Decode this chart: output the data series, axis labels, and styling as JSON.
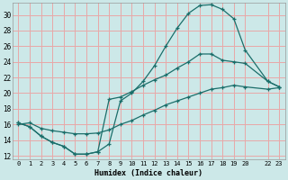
{
  "xlabel": "Humidex (Indice chaleur)",
  "background_color": "#cce8e8",
  "grid_color": "#e8a8a8",
  "line_color": "#1a6e6a",
  "xlim": [
    -0.5,
    23.5
  ],
  "ylim": [
    11.5,
    31.5
  ],
  "xticks": [
    0,
    1,
    2,
    3,
    4,
    5,
    6,
    7,
    8,
    9,
    10,
    11,
    12,
    13,
    14,
    15,
    16,
    17,
    18,
    19,
    20,
    22,
    23
  ],
  "yticks": [
    12,
    14,
    16,
    18,
    20,
    22,
    24,
    26,
    28,
    30
  ],
  "curve1_x": [
    0,
    1,
    2,
    3,
    4,
    5,
    6,
    7,
    8,
    9,
    10,
    11,
    12,
    13,
    14,
    15,
    16,
    17,
    18,
    19,
    20,
    22,
    23
  ],
  "curve1_y": [
    16.2,
    15.7,
    14.5,
    13.7,
    13.2,
    12.2,
    12.2,
    12.5,
    13.5,
    19.0,
    20.0,
    21.5,
    23.5,
    26.0,
    28.3,
    30.2,
    31.2,
    31.3,
    30.7,
    29.5,
    25.5,
    21.5,
    20.8
  ],
  "curve2_x": [
    0,
    1,
    2,
    3,
    4,
    5,
    6,
    7,
    8,
    9,
    10,
    11,
    12,
    13,
    14,
    15,
    16,
    17,
    18,
    19,
    20,
    22,
    23
  ],
  "curve2_y": [
    16.2,
    15.7,
    14.5,
    13.7,
    13.2,
    12.2,
    12.2,
    12.5,
    19.2,
    19.5,
    20.2,
    21.0,
    21.7,
    22.3,
    23.2,
    24.0,
    25.0,
    25.0,
    24.2,
    24.0,
    23.8,
    21.5,
    20.8
  ],
  "curve3_x": [
    0,
    1,
    2,
    3,
    4,
    5,
    6,
    7,
    8,
    9,
    10,
    11,
    12,
    13,
    14,
    15,
    16,
    17,
    18,
    19,
    20,
    22,
    23
  ],
  "curve3_y": [
    16.0,
    16.2,
    15.5,
    15.2,
    15.0,
    14.8,
    14.8,
    14.9,
    15.3,
    16.0,
    16.5,
    17.2,
    17.8,
    18.5,
    19.0,
    19.5,
    20.0,
    20.5,
    20.7,
    21.0,
    20.8,
    20.5,
    20.7
  ]
}
